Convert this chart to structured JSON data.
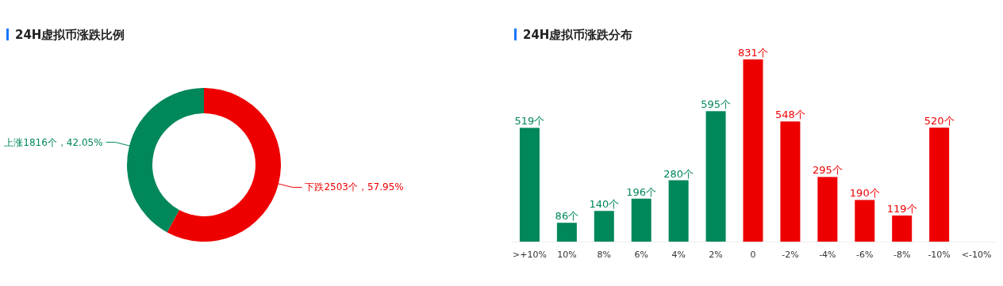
{
  "chart_data": [
    {
      "type": "donut",
      "title": "24H虚拟币涨跌比例",
      "categories": [
        "下跌",
        "上涨"
      ],
      "values": [
        2503,
        1816
      ],
      "value_labels": [
        "2503个，57.95%",
        "1816个，42.05%"
      ],
      "colors": [
        "#ee0000",
        "#00875a"
      ]
    },
    {
      "type": "bar",
      "title": "24H虚拟币涨跌分布",
      "categories": [
        ">+10%",
        "10%",
        "8%",
        "6%",
        "4%",
        "2%",
        "0",
        "-2%",
        "-4%",
        "-6%",
        "-8%",
        "-10%",
        "<-10%"
      ],
      "values": [
        519,
        86,
        140,
        196,
        280,
        595,
        831,
        548,
        295,
        190,
        119,
        520,
        null
      ],
      "value_labels": [
        "519个",
        "86个",
        "140个",
        "196个",
        "280个",
        "595个",
        "831个",
        "548个",
        "295个",
        "190个",
        "119个",
        "520个",
        null
      ],
      "colors": [
        "#00875a",
        "#00875a",
        "#00875a",
        "#00875a",
        "#00875a",
        "#00875a",
        "#ee0000",
        "#ee0000",
        "#ee0000",
        "#ee0000",
        "#ee0000",
        "#ee0000",
        null
      ]
    }
  ]
}
